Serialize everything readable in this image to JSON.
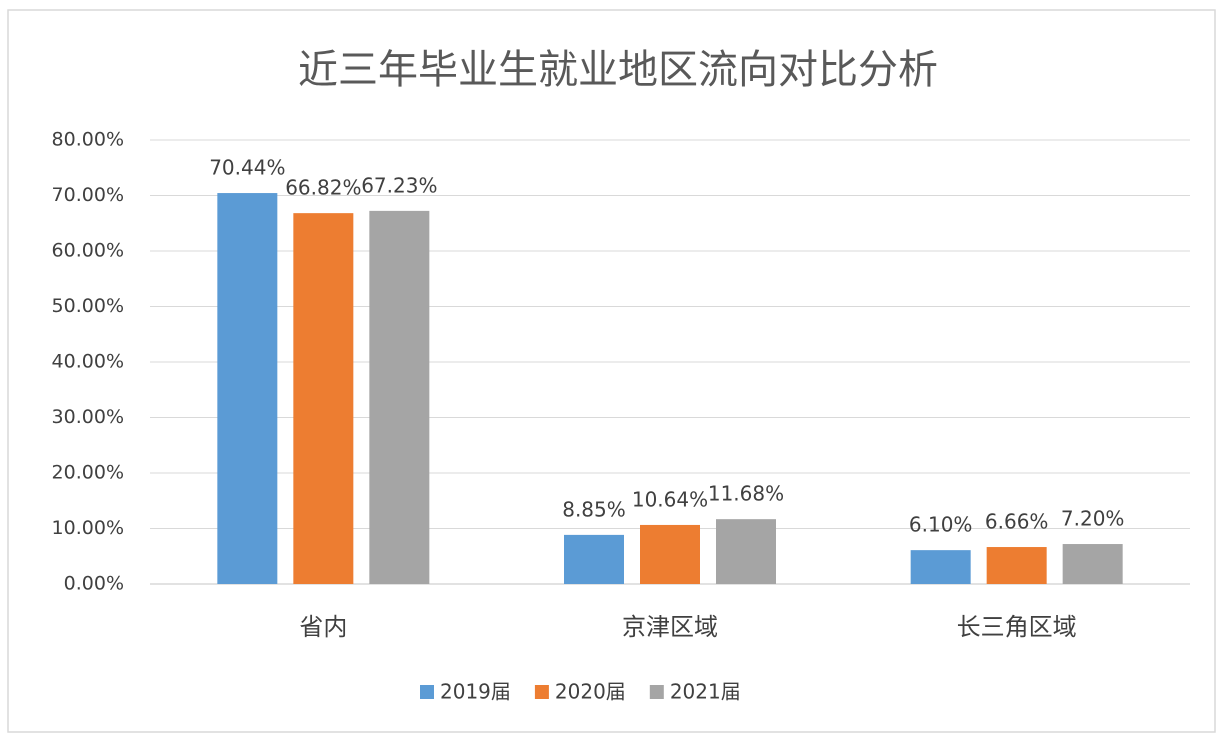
{
  "chart_data": {
    "type": "bar",
    "title": "近三年毕业生就业地区流向对比分析",
    "categories": [
      "省内",
      "京津区域",
      "长三角区域"
    ],
    "series": [
      {
        "name": "2019届",
        "color": "#5b9bd5",
        "values": [
          70.44,
          8.85,
          6.1
        ],
        "value_labels": [
          "70.44%",
          "8.85%",
          "6.10%"
        ]
      },
      {
        "name": "2020届",
        "color": "#ed7d31",
        "values": [
          66.82,
          10.64,
          6.66
        ],
        "value_labels": [
          "66.82%",
          "10.64%",
          "6.66%"
        ]
      },
      {
        "name": "2021届",
        "color": "#a5a5a5",
        "values": [
          67.23,
          11.68,
          7.2
        ],
        "value_labels": [
          "67.23%",
          "11.68%",
          "7.20%"
        ]
      }
    ],
    "ylim": [
      0,
      80
    ],
    "yticks": [
      {
        "value": 0,
        "label": "0.00%"
      },
      {
        "value": 10,
        "label": "10.00%"
      },
      {
        "value": 20,
        "label": "20.00%"
      },
      {
        "value": 30,
        "label": "30.00%"
      },
      {
        "value": 40,
        "label": "40.00%"
      },
      {
        "value": 50,
        "label": "50.00%"
      },
      {
        "value": 60,
        "label": "60.00%"
      },
      {
        "value": 70,
        "label": "70.00%"
      },
      {
        "value": 80,
        "label": "80.00%"
      }
    ],
    "grid": true,
    "legend": "bottom"
  }
}
